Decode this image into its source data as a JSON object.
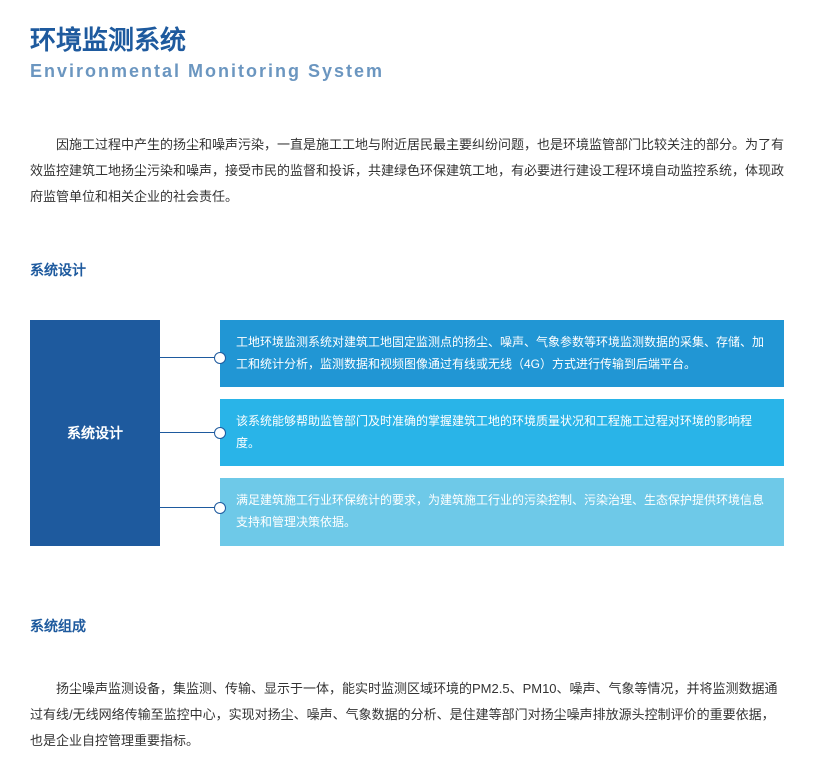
{
  "header": {
    "title_cn": "环境监测系统",
    "title_en": "Environmental Monitoring System"
  },
  "intro": "因施工过程中产生的扬尘和噪声污染，一直是施工工地与附近居民最主要纠纷问题，也是环境监管部门比较关注的部分。为了有效监控建筑工地扬尘污染和噪声，接受市民的监督和投诉，共建绿色环保建筑工地，有必要进行建设工程环境自动监控系统，体现政府监管单位和相关企业的社会责任。",
  "sections": {
    "design": {
      "heading": "系统设计",
      "center_label": "系统设计",
      "boxes": [
        {
          "text": "工地环境监测系统对建筑工地固定监测点的扬尘、噪声、气象参数等环境监测数据的采集、存储、加工和统计分析，监测数据和视频图像通过有线或无线（4G）方式进行传输到后端平台。",
          "bg_color": "#2196d4"
        },
        {
          "text": "该系统能够帮助监管部门及时准确的掌握建筑工地的环境质量状况和工程施工过程对环境的影响程度。",
          "bg_color": "#29b4e8"
        },
        {
          "text": "满足建筑施工行业环保统计的要求，为建筑施工行业的污染控制、污染治理、生态保护提供环境信息支持和管理决策依据。",
          "bg_color": "#6ec9e8"
        }
      ]
    },
    "composition": {
      "heading": "系统组成",
      "text": "扬尘噪声监测设备，集监测、传输、显示于一体，能实时监测区域环境的PM2.5、PM10、噪声、气象等情况，并将监测数据通过有线/无线网络传输至监控中心，实现对扬尘、噪声、气象数据的分析、是住建等部门对扬尘噪声排放源头控制评价的重要依据，也是企业自控管理重要指标。"
    }
  },
  "colors": {
    "primary_blue": "#1e5a9e",
    "subtitle_blue": "#6b96c0",
    "text": "#333333",
    "background": "#ffffff"
  }
}
